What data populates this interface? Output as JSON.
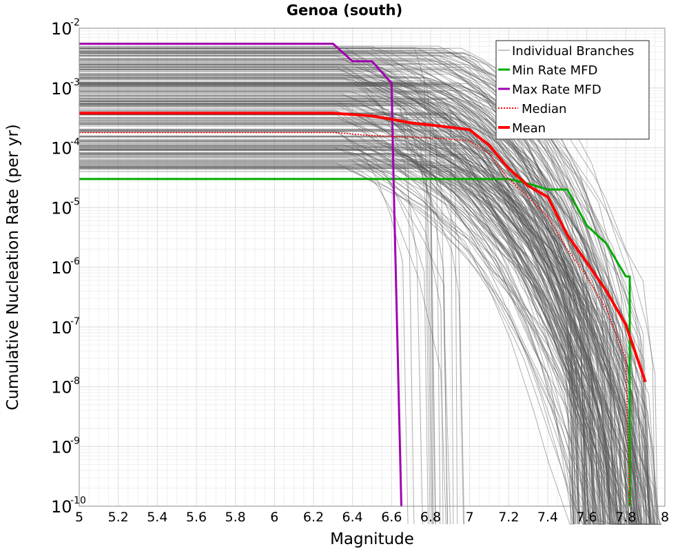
{
  "chart_data": {
    "type": "line",
    "title": "Genoa (south)",
    "xlabel": "Magnitude",
    "ylabel": "Cumulative Nucleation Rate (per yr)",
    "xlim": [
      5,
      8
    ],
    "ylim": [
      1e-10,
      0.01
    ],
    "yscale": "log",
    "grid": true,
    "legend_position": "top-right",
    "x_ticks": [
      "5",
      "5.2",
      "5.4",
      "5.6",
      "5.8",
      "6",
      "6.2",
      "6.4",
      "6.6",
      "6.8",
      "7",
      "7.2",
      "7.4",
      "7.6",
      "7.8",
      "8"
    ],
    "y_ticks": [
      {
        "base": "10",
        "exp": "-10"
      },
      {
        "base": "10",
        "exp": "-9"
      },
      {
        "base": "10",
        "exp": "-8"
      },
      {
        "base": "10",
        "exp": "-7"
      },
      {
        "base": "10",
        "exp": "-6"
      },
      {
        "base": "10",
        "exp": "-5"
      },
      {
        "base": "10",
        "exp": "-4"
      },
      {
        "base": "10",
        "exp": "-3"
      },
      {
        "base": "10",
        "exp": "-2"
      }
    ],
    "legend": [
      {
        "label": "Individual Branches",
        "color": "#b0b0b0",
        "style": "solid"
      },
      {
        "label": "Min Rate MFD",
        "color": "#00aa00",
        "style": "solid"
      },
      {
        "label": "Max Rate MFD",
        "color": "#a000b0",
        "style": "solid"
      },
      {
        "label": "Median",
        "color": "#ff0000",
        "style": "dotted"
      },
      {
        "label": "Mean",
        "color": "#ff0000",
        "style": "solid"
      }
    ],
    "series": [
      {
        "name": "Min Rate MFD",
        "color": "#00aa00",
        "x": [
          5.0,
          7.0,
          7.1,
          7.2,
          7.3,
          7.4,
          7.5,
          7.6,
          7.7,
          7.8,
          7.82,
          7.82
        ],
        "y": [
          3e-05,
          3e-05,
          3e-05,
          3e-05,
          2.5e-05,
          2e-05,
          2e-05,
          5e-06,
          2.5e-06,
          7e-07,
          7e-07,
          1e-10
        ]
      },
      {
        "name": "Max Rate MFD",
        "color": "#a000b0",
        "x": [
          5.0,
          6.3,
          6.4,
          6.5,
          6.6,
          6.61,
          6.65
        ],
        "y": [
          0.0055,
          0.0055,
          0.0028,
          0.0028,
          0.0012,
          3e-05,
          1e-10
        ]
      },
      {
        "name": "Median",
        "color": "#ff0000",
        "x": [
          5.0,
          6.3,
          6.5,
          6.7,
          6.9,
          7.0,
          7.1,
          7.2,
          7.3,
          7.4,
          7.5,
          7.6,
          7.7,
          7.8,
          7.82
        ],
        "y": [
          0.00018,
          0.00018,
          0.00016,
          0.00015,
          0.00014,
          0.00013,
          8e-05,
          3e-05,
          1.5e-05,
          7e-06,
          2e-06,
          7e-07,
          2e-07,
          3e-08,
          1e-10
        ]
      },
      {
        "name": "Mean",
        "color": "#ff0000",
        "x": [
          5.0,
          6.3,
          6.5,
          6.6,
          6.7,
          6.8,
          6.9,
          7.0,
          7.1,
          7.2,
          7.3,
          7.4,
          7.5,
          7.6,
          7.7,
          7.8,
          7.9
        ],
        "y": [
          0.00038,
          0.00038,
          0.00034,
          0.0003,
          0.00026,
          0.00024,
          0.00022,
          0.0002,
          0.00011,
          4.5e-05,
          2.3e-05,
          1.5e-05,
          3.5e-06,
          1.2e-06,
          4e-07,
          1.1e-07,
          1.2e-08
        ]
      }
    ]
  }
}
